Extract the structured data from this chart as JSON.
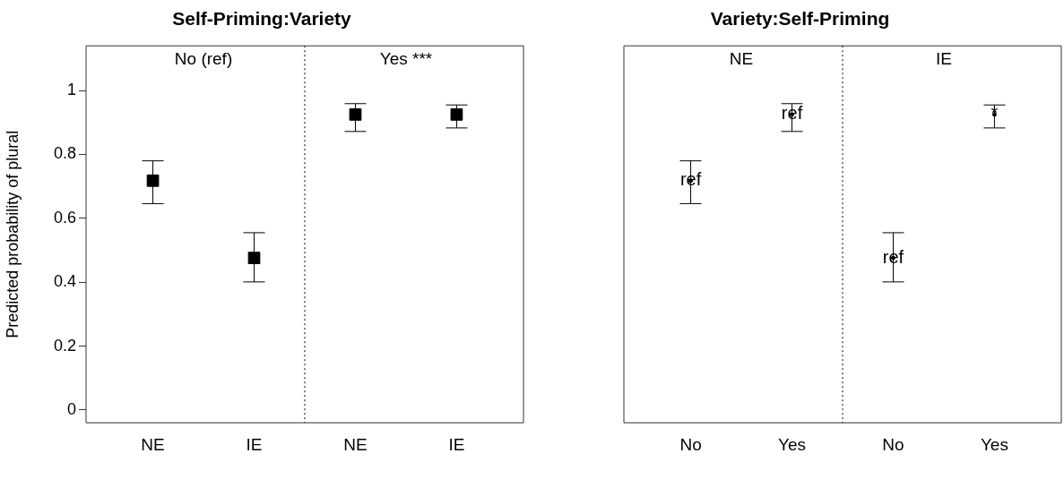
{
  "chart_data": [
    {
      "type": "scatter",
      "title": "Self-Priming:Variety",
      "ylabel": "Predicted probability of plural",
      "categories": [
        "NE",
        "IE",
        "NE",
        "IE"
      ],
      "ylim": [
        -0.04,
        1.14
      ],
      "yticks": [
        0,
        0.2,
        0.4,
        0.6,
        0.8,
        1
      ],
      "marker": "square",
      "series": [
        {
          "color": "#000000",
          "values": [
            0.718,
            0.476,
            0.925,
            0.925
          ],
          "errors": [
            [
              0.646,
              0.78
            ],
            [
              0.401,
              0.555
            ],
            [
              0.872,
              0.959
            ],
            [
              0.883,
              0.955
            ]
          ]
        }
      ],
      "annotations": [
        "No (ref)",
        "Yes ***"
      ]
    },
    {
      "type": "scatter",
      "title": "Variety:Self-Priming",
      "categories": [
        "No",
        "Yes",
        "No",
        "Yes"
      ],
      "ylim": [
        -0.04,
        1.14
      ],
      "yticks": [
        0,
        0.2,
        0.4,
        0.6,
        0.8,
        1
      ],
      "tick_labels": "x",
      "marker": "circle",
      "series": [
        {
          "color": "#000000",
          "values": [
            0.718,
            0.925,
            0.476,
            0.925
          ],
          "errors": [
            [
              0.646,
              0.78
            ],
            [
              0.872,
              0.959
            ],
            [
              0.401,
              0.555
            ],
            [
              0.883,
              0.955
            ]
          ],
          "value_labels": [
            "ref",
            "ref",
            "ref",
            "*"
          ]
        }
      ],
      "annotations": [
        "NE",
        "IE"
      ]
    }
  ]
}
